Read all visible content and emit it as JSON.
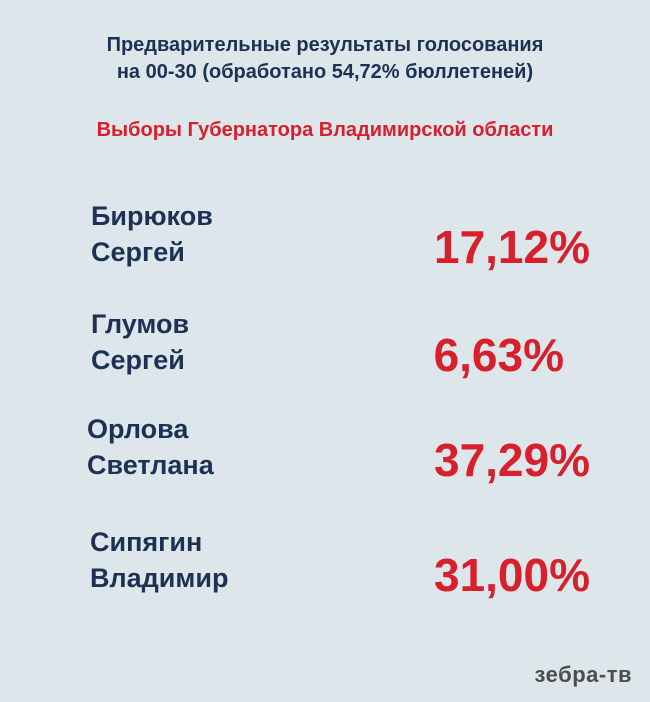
{
  "header": {
    "line1": "Предварительные результаты голосования",
    "line2": "на 00-30 (обработано 54,72% бюллетеней)"
  },
  "subtitle": "Выборы Губернатора Владимирской области",
  "candidates": [
    {
      "surname": "Бирюков",
      "first_name": "Сергей",
      "percent": "17,12%"
    },
    {
      "surname": "Глумов",
      "first_name": "Сергей",
      "percent": "6,63%"
    },
    {
      "surname": "Орлова",
      "first_name": "Светлана",
      "percent": "37,29%"
    },
    {
      "surname": "Сипягин",
      "first_name": "Владимир",
      "percent": "31,00%"
    }
  ],
  "logo": "зебра-тв",
  "colors": {
    "background": "#dde6ea",
    "text_dark": "#1d3155",
    "accent_red": "#d7202c"
  }
}
